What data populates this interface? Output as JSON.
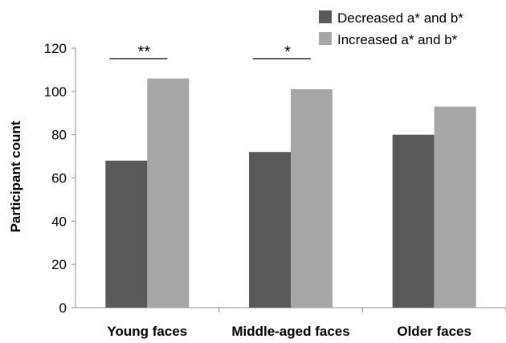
{
  "chart_data": {
    "type": "bar",
    "categories": [
      "Young faces",
      "Middle-aged faces",
      "Older faces"
    ],
    "series": [
      {
        "name": "Decreased a* and b*",
        "values": [
          68,
          72,
          80
        ],
        "color": "#595959"
      },
      {
        "name": "Increased a* and b*",
        "values": [
          106,
          101,
          93
        ],
        "color": "#a6a6a6"
      }
    ],
    "ylabel": "Participant count",
    "xlabel": "",
    "ylim": [
      0,
      120
    ],
    "yticks": [
      0,
      20,
      40,
      60,
      80,
      100,
      120
    ],
    "legend_position": "top-right",
    "grid": false,
    "annotations": [
      {
        "category_index": 0,
        "text": "**"
      },
      {
        "category_index": 1,
        "text": "*"
      }
    ]
  }
}
